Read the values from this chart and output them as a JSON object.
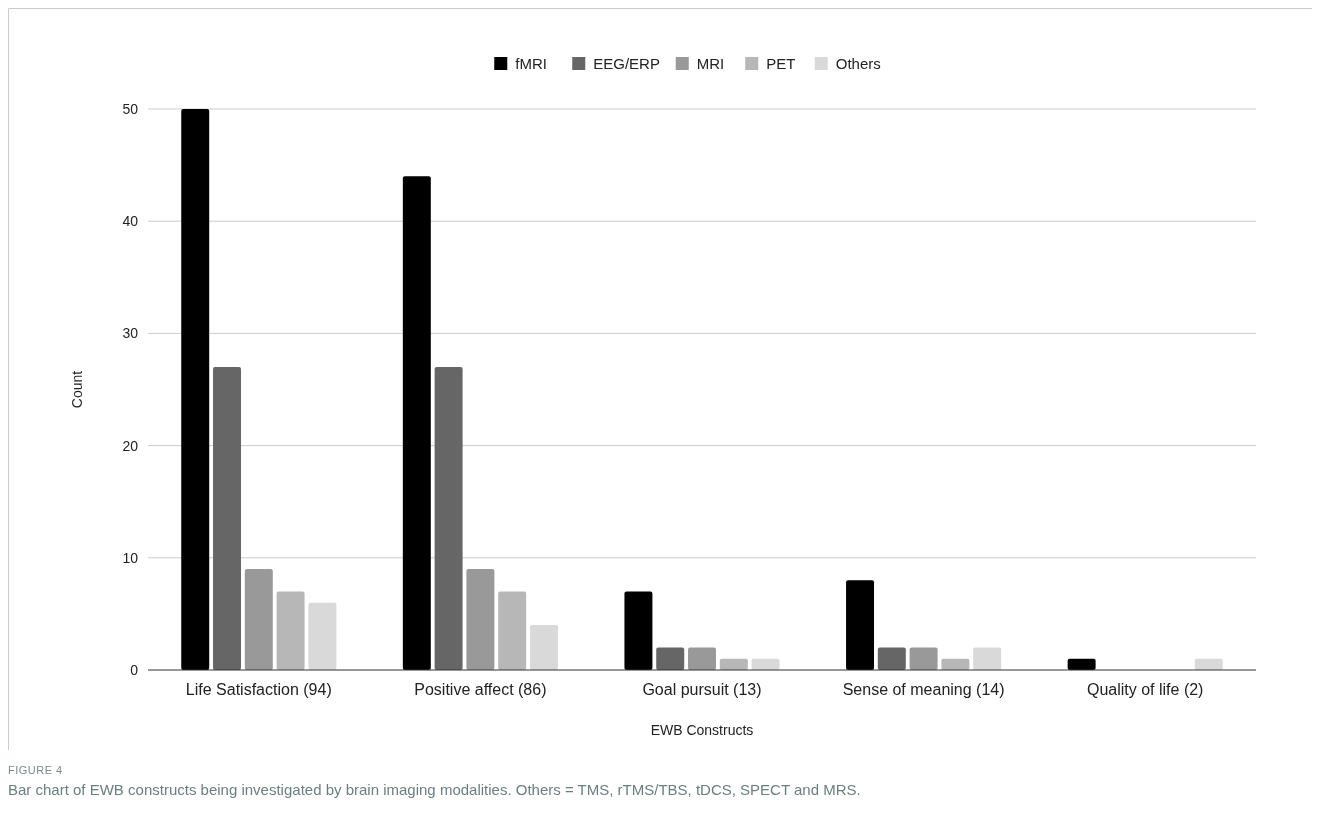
{
  "chart_data": {
    "type": "bar",
    "xlabel": "EWB Constructs",
    "ylabel": "Count",
    "categories": [
      "Life Satisfaction (94)",
      "Positive affect (86)",
      "Goal pursuit (13)",
      "Sense of meaning (14)",
      "Quality of life (2)"
    ],
    "series": [
      {
        "name": "fMRI",
        "color": "#000000",
        "values": [
          50,
          44,
          7,
          8,
          1
        ]
      },
      {
        "name": "EEG/ERP",
        "color": "#666666",
        "values": [
          27,
          27,
          2,
          2,
          0
        ]
      },
      {
        "name": "MRI",
        "color": "#999999",
        "values": [
          9,
          9,
          2,
          2,
          0
        ]
      },
      {
        "name": "PET",
        "color": "#b7b7b7",
        "values": [
          7,
          7,
          1,
          1,
          0
        ]
      },
      {
        "name": "Others",
        "color": "#d9d9d9",
        "values": [
          6,
          4,
          1,
          2,
          1
        ]
      }
    ],
    "ylim": [
      0,
      50
    ],
    "yticks": [
      0,
      10,
      20,
      30,
      40,
      50
    ],
    "grid": "y",
    "legend": "top",
    "annotations": [
      "FIGURE 4",
      "Bar chart of EWB constructs being investigated by brain imaging modalities. Others = TMS, rTMS/TBS, tDCS, SPECT and MRS."
    ]
  }
}
